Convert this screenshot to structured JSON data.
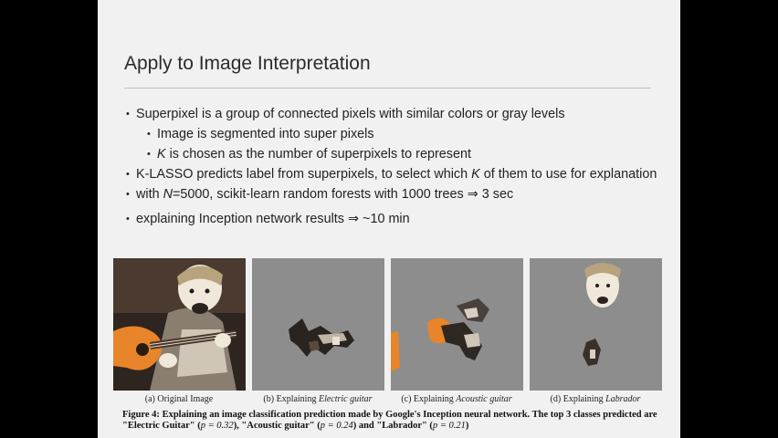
{
  "slide": {
    "title": "Apply to Image Interpretation",
    "bullets": [
      {
        "level": 1,
        "text": "Superpixel is a group of connected pixels with similar colors or gray levels"
      },
      {
        "level": 2,
        "text": "Image is segmented into super pixels"
      },
      {
        "level": 2,
        "text_pre": "",
        "var": "K",
        "text_post": " is chosen as the number of superpixels to represent"
      },
      {
        "level": 1,
        "text_pre": "K-LASSO predicts label from superpixels, to select which ",
        "var": "K",
        "text_post": " of them to use for explanation"
      },
      {
        "level": 1,
        "text_pre": "with ",
        "var": "N",
        "text_post": "=5000, scikit-learn random forests with 1000 trees ⇒ 3 sec"
      },
      {
        "level": 1,
        "text": "explaining Inception network results ⇒ ~10 min"
      }
    ]
  },
  "figure": {
    "captions": [
      {
        "prefix": "(a) Original Image",
        "italic": ""
      },
      {
        "prefix": "(b) Explaining ",
        "italic": "Electric guitar"
      },
      {
        "prefix": "(c) Explaining ",
        "italic": "Acoustic guitar"
      },
      {
        "prefix": "(d) Explaining ",
        "italic": "Labrador"
      }
    ],
    "caption_label": "Figure 4:",
    "caption_bold": "Explaining an image classification prediction made by Google's Inception neural network. The top 3 classes predicted are \"Electric Guitar\" (",
    "p1": "p = 0.32",
    "mid1": "), \"Acoustic guitar\" (",
    "p2": "p = 0.24",
    "mid2": ") and \"Labrador\" (",
    "p3": "p = 0.21",
    "end": ")",
    "colors": {
      "guitar_orange": "#e8842a",
      "mask_gray": "#8d8d8d",
      "fur": "#efe6d6",
      "dark_bg": "#3a2a20"
    }
  }
}
